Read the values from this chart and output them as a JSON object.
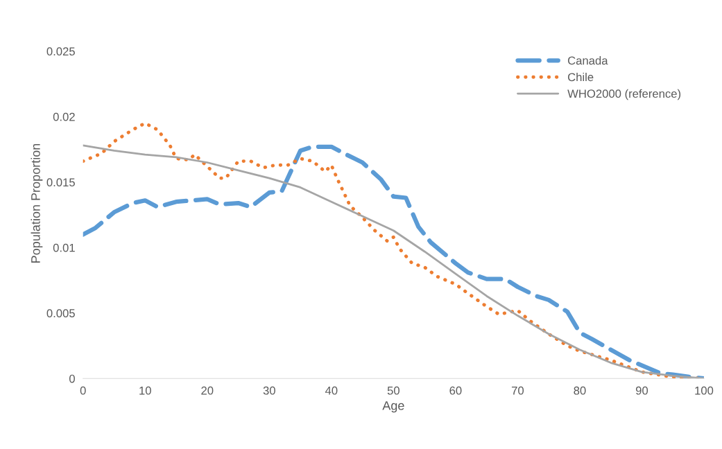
{
  "chart_data": {
    "type": "line",
    "xlabel": "Age",
    "ylabel": "Population Proportion",
    "xlim": [
      0,
      100
    ],
    "ylim": [
      0,
      0.025
    ],
    "xticks": [
      0,
      10,
      20,
      30,
      40,
      50,
      60,
      70,
      80,
      90,
      100
    ],
    "yticks": [
      0,
      0.005,
      0.01,
      0.015,
      0.02,
      0.025
    ],
    "grid": false,
    "legend": "top right",
    "marker": "none",
    "series": [
      {
        "name": "Canada",
        "color": "#5b9bd5",
        "line_style": "dashed",
        "x": [
          0,
          2,
          5,
          8,
          10,
          12,
          15,
          20,
          22,
          25,
          27,
          30,
          32,
          35,
          37,
          40,
          42,
          45,
          48,
          50,
          52,
          54,
          56,
          60,
          62,
          65,
          68,
          70,
          73,
          75,
          78,
          80,
          82,
          85,
          88,
          90,
          93,
          95,
          98,
          100
        ],
        "values": [
          0.011,
          0.0115,
          0.0127,
          0.0134,
          0.0136,
          0.0131,
          0.0135,
          0.0137,
          0.0133,
          0.0134,
          0.0131,
          0.0142,
          0.0143,
          0.0174,
          0.0177,
          0.0177,
          0.0172,
          0.0165,
          0.0152,
          0.0139,
          0.0138,
          0.0116,
          0.0104,
          0.0088,
          0.0081,
          0.0076,
          0.0076,
          0.007,
          0.0063,
          0.006,
          0.0051,
          0.0035,
          0.003,
          0.0022,
          0.0014,
          0.001,
          0.0004,
          0.0003,
          0.0001,
          0.0
        ]
      },
      {
        "name": "Chile",
        "color": "#ed7d31",
        "line_style": "dotted",
        "x": [
          0,
          3,
          5,
          8,
          10,
          12,
          14,
          15,
          17,
          18,
          20,
          22,
          23,
          25,
          27,
          29,
          31,
          33,
          35,
          37,
          39,
          40,
          41,
          43,
          45,
          47,
          49,
          50,
          51,
          53,
          55,
          57,
          60,
          62,
          65,
          67,
          69,
          70,
          72,
          75,
          78,
          80,
          85,
          90,
          95,
          100
        ],
        "values": [
          0.0166,
          0.0172,
          0.0181,
          0.019,
          0.0195,
          0.019,
          0.0178,
          0.0168,
          0.0167,
          0.0171,
          0.0162,
          0.0153,
          0.0153,
          0.0166,
          0.0166,
          0.0161,
          0.0163,
          0.0163,
          0.0168,
          0.0166,
          0.0158,
          0.0163,
          0.0152,
          0.0132,
          0.0123,
          0.0113,
          0.0105,
          0.0108,
          0.0099,
          0.0088,
          0.0085,
          0.0078,
          0.0072,
          0.0065,
          0.0055,
          0.0049,
          0.0051,
          0.0052,
          0.0044,
          0.0034,
          0.0025,
          0.0021,
          0.0014,
          0.0005,
          0.0001,
          0.0
        ]
      },
      {
        "name": "WHO2000 (reference)",
        "color": "#a5a5a5",
        "line_style": "solid",
        "x": [
          0,
          5,
          10,
          15,
          20,
          25,
          30,
          35,
          40,
          45,
          50,
          55,
          60,
          65,
          70,
          75,
          80,
          85,
          90,
          95,
          100
        ],
        "values": [
          0.0178,
          0.0174,
          0.0171,
          0.0169,
          0.0165,
          0.0159,
          0.0153,
          0.0146,
          0.0135,
          0.0124,
          0.0113,
          0.0097,
          0.008,
          0.0063,
          0.0048,
          0.0034,
          0.0022,
          0.0012,
          0.0005,
          0.0002,
          0.0
        ]
      }
    ]
  }
}
